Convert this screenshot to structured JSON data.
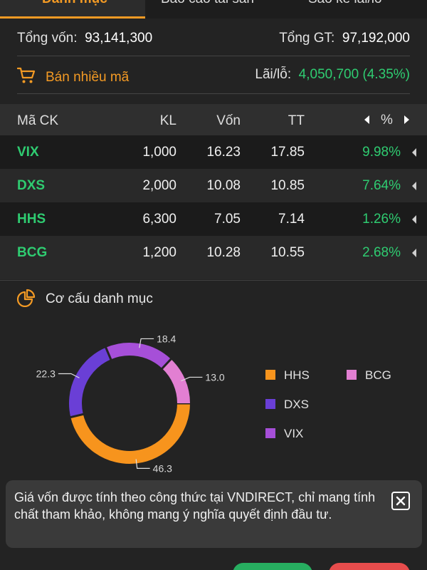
{
  "tabs": [
    {
      "label": "Danh mục"
    },
    {
      "label": "Báo cáo tài sản"
    },
    {
      "label": "Sao kê lãi/lỗ"
    }
  ],
  "summary": {
    "tong_von_label": "Tổng vốn:",
    "tong_von_value": "93,141,300",
    "tong_gt_label": "Tổng GT:",
    "tong_gt_value": "97,192,000",
    "ban_nhieu_ma": "Bán nhiều mã",
    "lai_lo_label": "Lãi/lỗ:",
    "lai_lo_value": "4,050,700 (4.35%)"
  },
  "table": {
    "headers": {
      "code": "Mã CK",
      "kl": "KL",
      "von": "Vốn",
      "tt": "TT",
      "pct": "%"
    },
    "rows": [
      {
        "code": "VIX",
        "kl": "1,000",
        "von": "16.23",
        "tt": "17.85",
        "pct": "9.98%"
      },
      {
        "code": "DXS",
        "kl": "2,000",
        "von": "10.08",
        "tt": "10.85",
        "pct": "7.64%"
      },
      {
        "code": "HHS",
        "kl": "6,300",
        "von": "7.05",
        "tt": "7.14",
        "pct": "1.26%"
      },
      {
        "code": "BCG",
        "kl": "1,200",
        "von": "10.28",
        "tt": "10.55",
        "pct": "2.68%"
      }
    ]
  },
  "allocation": {
    "title": "Cơ cấu danh mục",
    "slice_labels": [
      "46.3",
      "22.3",
      "18.4",
      "13.0"
    ],
    "legend": [
      {
        "name": "HHS",
        "color": "#f7941d"
      },
      {
        "name": "BCG",
        "color": "#e27fd2"
      },
      {
        "name": "DXS",
        "color": "#6a3fd6"
      },
      {
        "name": "VIX",
        "color": "#a64fd8"
      }
    ]
  },
  "chart_data": {
    "type": "pie",
    "categories": [
      "HHS",
      "DXS",
      "VIX",
      "BCG"
    ],
    "values": [
      46.3,
      22.3,
      18.4,
      13.0
    ],
    "colors": [
      "#f7941d",
      "#6a3fd6",
      "#a64fd8",
      "#e27fd2"
    ],
    "title": "Cơ cấu danh mục",
    "legend": "right"
  },
  "notice": {
    "text": "Giá vốn được tính theo công thức tại VNDIRECT, chỉ mang tính chất tham khảo, không mang ý nghĩa quyết định đầu tư."
  }
}
